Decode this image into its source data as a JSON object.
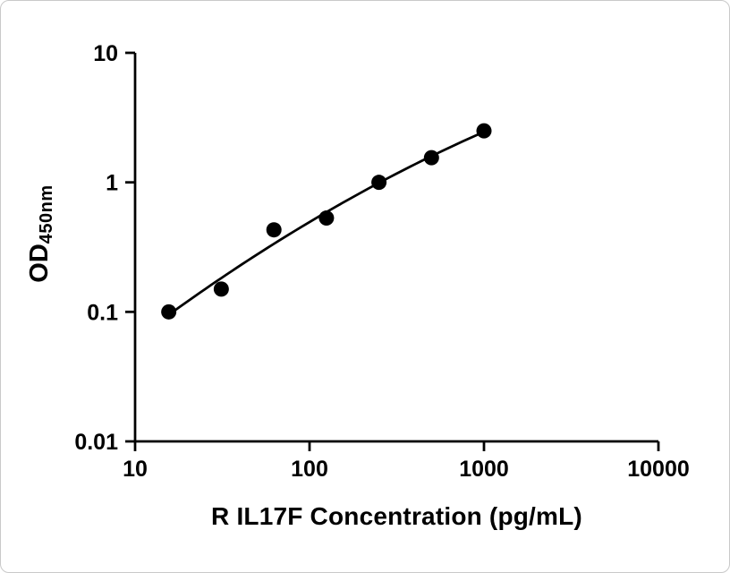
{
  "figure": {
    "background": "#ffffff",
    "border_color": "#c9c9c9"
  },
  "chart_data": {
    "type": "scatter",
    "title": "",
    "xlabel": "R IL17F Concentration (pg/mL)",
    "ylabel": "OD",
    "ylabel_sub": "450nm",
    "x_scale": "log",
    "y_scale": "log",
    "xlim": [
      10,
      10000
    ],
    "ylim": [
      0.01,
      10
    ],
    "grid": false,
    "legend": "none",
    "x_ticks": [
      {
        "value": 10,
        "label": "10"
      },
      {
        "value": 100,
        "label": "100"
      },
      {
        "value": 1000,
        "label": "1000"
      },
      {
        "value": 10000,
        "label": "10000"
      }
    ],
    "y_ticks": [
      {
        "value": 10,
        "label": "10"
      },
      {
        "value": 1,
        "label": "1"
      },
      {
        "value": 0.1,
        "label": "0.1"
      },
      {
        "value": 0.01,
        "label": "0.01"
      }
    ],
    "points": [
      {
        "x": 15.6,
        "y": 0.1
      },
      {
        "x": 31.2,
        "y": 0.15
      },
      {
        "x": 62.5,
        "y": 0.43
      },
      {
        "x": 125,
        "y": 0.53
      },
      {
        "x": 250,
        "y": 1.0
      },
      {
        "x": 500,
        "y": 1.55
      },
      {
        "x": 1000,
        "y": 2.5
      }
    ],
    "fit": {
      "type": "quadratic-loglog",
      "shown": true
    },
    "marker_color": "#000000",
    "line_color": "#000000",
    "axis_color": "#000000",
    "text_color": "#000000"
  }
}
